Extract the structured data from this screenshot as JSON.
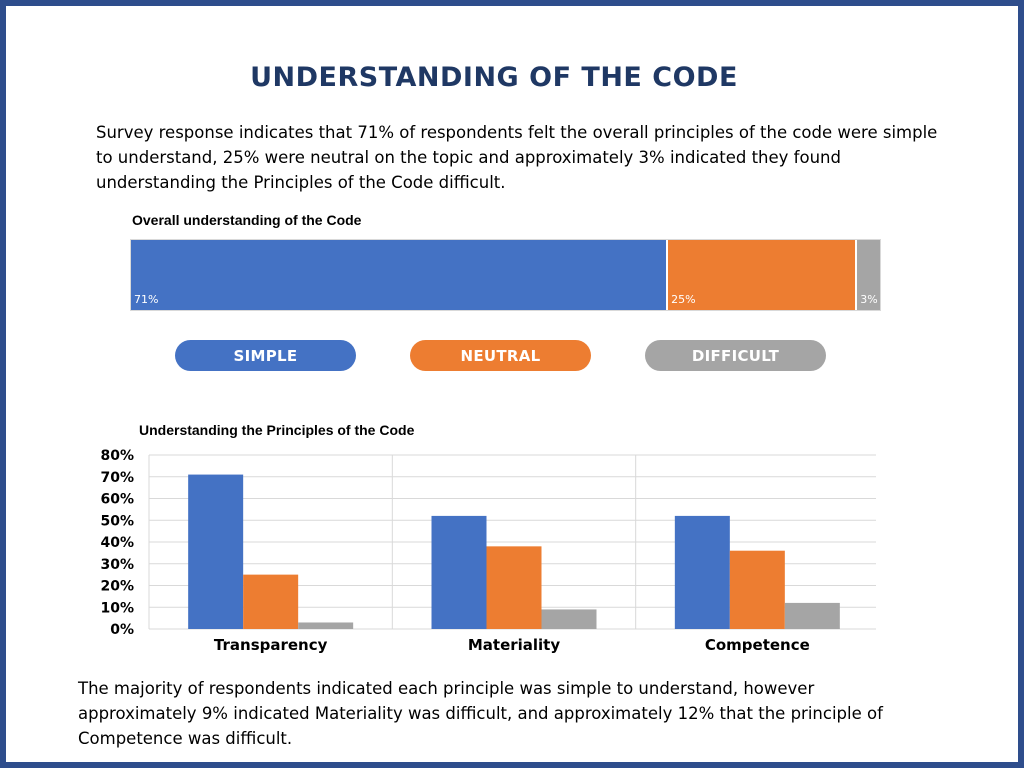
{
  "page": {
    "title": "UNDERSTANDING OF THE CODE",
    "intro": "Survey response indicates that 71% of respondents felt the overall principles of the code were simple to understand, 25% were neutral on the topic and approximately 3% indicated they found understanding the Principles of the Code difficult.",
    "outro": "The majority of respondents indicated each principle was simple to understand, however approximately 9% indicated Materiality was difficult, and approximately 12% that the principle of Competence was difficult."
  },
  "colors": {
    "simple": "#4472c4",
    "neutral": "#ed7d31",
    "difficult": "#a5a5a5",
    "frame": "#2e4d8c",
    "title": "#1f3864"
  },
  "legend": {
    "simple": "SIMPLE",
    "neutral": "NEUTRAL",
    "difficult": "DIFFICULT"
  },
  "chart_data": [
    {
      "type": "bar",
      "stacked": true,
      "orientation": "horizontal",
      "title": "Overall understanding of the Code",
      "series": [
        {
          "name": "SIMPLE",
          "values": [
            71
          ],
          "label": "71%"
        },
        {
          "name": "NEUTRAL",
          "values": [
            25
          ],
          "label": "25%"
        },
        {
          "name": "DIFFICULT",
          "values": [
            3
          ],
          "label": "3%"
        }
      ]
    },
    {
      "type": "bar",
      "title": "Understanding the Principles of the Code",
      "categories": [
        "Transparency",
        "Materiality",
        "Competence"
      ],
      "series": [
        {
          "name": "SIMPLE",
          "values": [
            71,
            52,
            52
          ]
        },
        {
          "name": "NEUTRAL",
          "values": [
            25,
            38,
            36
          ]
        },
        {
          "name": "DIFFICULT",
          "values": [
            3,
            9,
            12
          ]
        }
      ],
      "ylim": [
        0,
        80
      ],
      "yticks": [
        "0%",
        "10%",
        "20%",
        "30%",
        "40%",
        "50%",
        "60%",
        "70%",
        "80%"
      ],
      "grid": true
    }
  ]
}
